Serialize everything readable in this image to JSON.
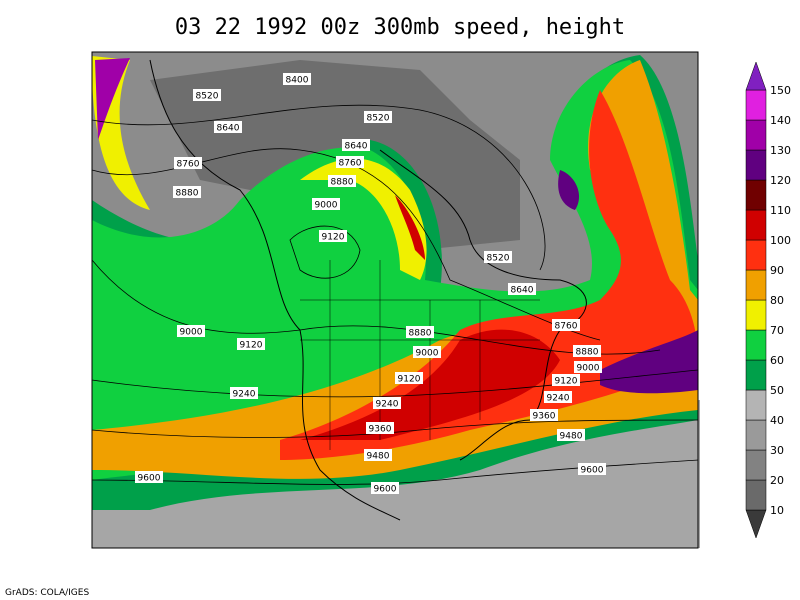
{
  "title": "03 22 1992 00z 300mb speed, height",
  "footer": "GrADS: COLA/IGES",
  "contour_labels": [
    8400,
    8520,
    8640,
    8760,
    8880,
    8520,
    8640,
    8760,
    8880,
    9000,
    9120,
    8520,
    8640,
    8760,
    8880,
    9000,
    9120,
    9000,
    8880,
    9000,
    9120,
    9120,
    9240,
    9240,
    9240,
    9360,
    9360,
    9480,
    9480,
    9600,
    9600,
    9600
  ],
  "colorbar": {
    "levels": [
      10,
      20,
      30,
      40,
      50,
      60,
      70,
      80,
      90,
      100,
      110,
      120,
      130,
      140,
      150
    ],
    "colors": [
      "#3a3a3a",
      "#6a6a6a",
      "#828282",
      "#9a9a9a",
      "#b4b4b4",
      "#00a04a",
      "#10d040",
      "#f0f000",
      "#f0a000",
      "#ff3010",
      "#d00000",
      "#700000",
      "#600080",
      "#a000a8",
      "#e020e0",
      "#8020c0"
    ]
  }
}
